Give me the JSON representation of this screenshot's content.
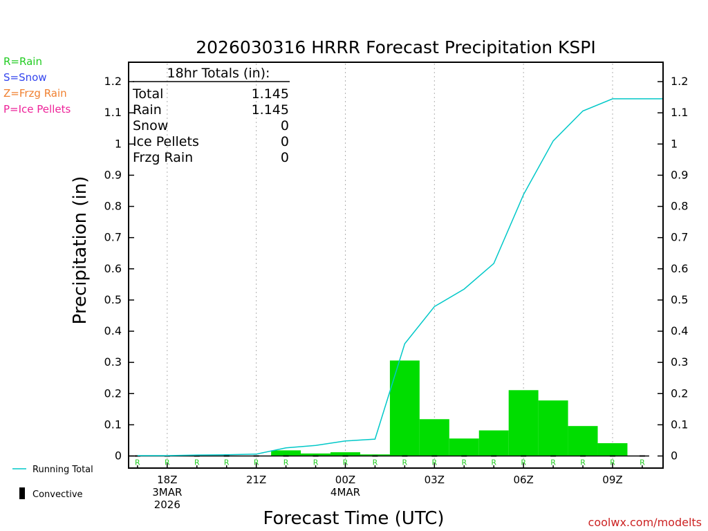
{
  "chart_data": {
    "type": "bar",
    "title": "2026030316 HRRR Forecast Precipitation KSPI",
    "xlabel": "Forecast Time (UTC)",
    "ylabel": "Precipitation (in)",
    "ylim": [
      0,
      1.25
    ],
    "yticks": [
      "0",
      "0.1",
      "0.2",
      "0.3",
      "0.4",
      "0.5",
      "0.6",
      "0.7",
      "0.8",
      "0.9",
      "1",
      "1.1",
      "1.2"
    ],
    "hours": [
      17,
      18,
      19,
      20,
      21,
      22,
      23,
      24,
      25,
      26,
      27,
      28,
      29,
      30,
      31,
      32,
      33,
      34
    ],
    "xrange_hours": [
      16.7,
      34.7
    ],
    "xticks": [
      {
        "hour": 18,
        "lines": [
          "18Z",
          "3MAR",
          "2026"
        ]
      },
      {
        "hour": 21,
        "lines": [
          "21Z"
        ]
      },
      {
        "hour": 24,
        "lines": [
          "00Z",
          "4MAR"
        ]
      },
      {
        "hour": 27,
        "lines": [
          "03Z"
        ]
      },
      {
        "hour": 30,
        "lines": [
          "06Z"
        ]
      },
      {
        "hour": 33,
        "lines": [
          "09Z"
        ]
      }
    ],
    "series": [
      {
        "name": "Rain",
        "color": "#00dd00",
        "values": [
          0,
          0,
          0,
          0,
          0,
          0.018,
          0.008,
          0.012,
          0.005,
          0.306,
          0.118,
          0.056,
          0.082,
          0.211,
          0.178,
          0.096,
          0.041,
          0
        ]
      },
      {
        "name": "Running Total",
        "color": "#00c8c8",
        "values": [
          0.001,
          0.001,
          0.003,
          0.004,
          0.006,
          0.026,
          0.034,
          0.048,
          0.054,
          0.36,
          0.479,
          0.535,
          0.617,
          0.838,
          1.01,
          1.106,
          1.145,
          1.145
        ]
      },
      {
        "name": "Convective",
        "color": "#000000",
        "values": [
          0,
          0,
          0,
          0,
          0,
          0,
          0,
          0,
          0,
          0,
          0,
          0,
          0,
          0,
          0,
          0,
          0,
          0
        ]
      }
    ],
    "ptype_labels": [
      "R",
      "R",
      "R",
      "R",
      "R",
      "R",
      "R",
      "R",
      "R",
      "R",
      "R",
      "R",
      "R",
      "R",
      "R",
      "R",
      "R",
      "R"
    ],
    "totals_box": {
      "title": "18hr Totals (in):",
      "rows": [
        {
          "label": "Total",
          "value": "1.145"
        },
        {
          "label": "Rain",
          "value": "1.145"
        },
        {
          "label": "Snow",
          "value": "0"
        },
        {
          "label": "Ice Pellets",
          "value": "0"
        },
        {
          "label": "Frzg Rain",
          "value": "0"
        }
      ]
    },
    "legend": {
      "running_total": "Running Total",
      "convective": "Convective"
    }
  },
  "ptype_legend": [
    {
      "text": "R=Rain",
      "color": "#22cc22"
    },
    {
      "text": "S=Snow",
      "color": "#3344ee"
    },
    {
      "text": "Z=Frzg Rain",
      "color": "#f08030"
    },
    {
      "text": "P=Ice Pellets",
      "color": "#ee2299"
    }
  ],
  "footer": {
    "credit": "coolwx.com/modelts",
    "credit_color": "#cc2222"
  }
}
